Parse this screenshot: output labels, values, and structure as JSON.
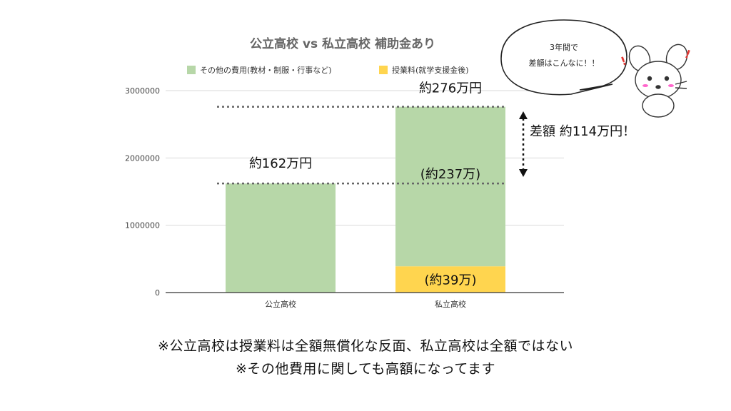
{
  "chart_data": {
    "type": "bar",
    "stacked": true,
    "title": "公立高校 vs 私立高校 補助金あり",
    "categories": [
      "公立高校",
      "私立高校"
    ],
    "series": [
      {
        "name": "授業料(就学支援金後)",
        "color": "#FFD54F",
        "values": [
          0,
          390000
        ]
      },
      {
        "name": "その他の費用(教材・制服・行事など)",
        "color": "#B7D7A8",
        "values": [
          1620000,
          2370000
        ]
      }
    ],
    "ylim": [
      0,
      3000000
    ],
    "yticks": [
      0,
      1000000,
      2000000,
      3000000
    ],
    "ytick_labels": [
      "0",
      "1000000",
      "2000000",
      "3000000"
    ],
    "grid": true,
    "legend": "top",
    "annotations": {
      "public_total": "約162万円",
      "private_total": "約276万円",
      "private_other": "(約237万)",
      "private_tuition": "(約39万)",
      "difference": "差額 約114万円！"
    },
    "reference_lines": [
      1620000,
      2760000
    ]
  },
  "speech_bubble": {
    "line1": "3年間で",
    "line2": "差額はこんなに！！"
  },
  "mascot": {
    "icon": "mouse-icon",
    "mark": "!"
  },
  "footnotes": {
    "line1": "※公立高校は授業料は全額無償化な反面、私立高校は全額ではない",
    "line2": "※その他費用に関しても高額になってます"
  }
}
